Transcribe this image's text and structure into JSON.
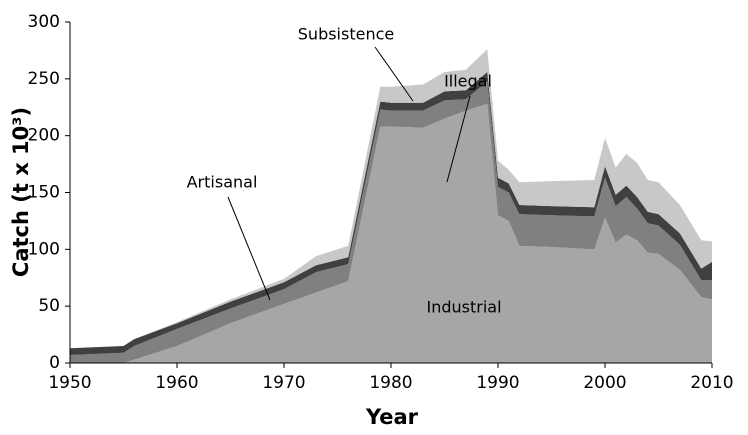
{
  "chart_data": {
    "type": "stacked_area",
    "x_label": "Year",
    "y_label": "Catch (t x 10³)",
    "x": [
      1950,
      1955,
      1956,
      1960,
      1965,
      1970,
      1973,
      1976,
      1979,
      1980,
      1983,
      1985,
      1987,
      1989,
      1990,
      1991,
      1992,
      1995,
      1999,
      2000,
      2001,
      2002,
      2003,
      2004,
      2005,
      2007,
      2009,
      2010
    ],
    "series": [
      {
        "name": "Industrial",
        "color": "#a6a6a6",
        "values": [
          0,
          0,
          3,
          15,
          35,
          52,
          62,
          72,
          208,
          208,
          207,
          215,
          222,
          228,
          130,
          125,
          103,
          102,
          100,
          128,
          106,
          113,
          108,
          97,
          96,
          82,
          58,
          56
        ]
      },
      {
        "name": "Artisanal",
        "color": "#808080",
        "values": [
          7,
          9,
          12,
          15,
          13,
          13,
          18,
          15,
          15,
          14,
          15,
          16,
          10,
          20,
          25,
          25,
          28,
          28,
          29,
          35,
          32,
          33,
          28,
          26,
          25,
          22,
          15,
          17
        ]
      },
      {
        "name": "Subsistence",
        "color": "#404040",
        "values": [
          6,
          6,
          6,
          5,
          6,
          6,
          6,
          6,
          7,
          7,
          7,
          8,
          8,
          8,
          8,
          8,
          8,
          8,
          8,
          10,
          10,
          10,
          10,
          10,
          10,
          10,
          10,
          16
        ]
      },
      {
        "name": "Illegal",
        "color": "#c8c8c8",
        "values": [
          0,
          0,
          0,
          1,
          2,
          3,
          8,
          10,
          13,
          14,
          16,
          17,
          18,
          20,
          15,
          12,
          20,
          22,
          24,
          25,
          24,
          28,
          30,
          28,
          28,
          25,
          25,
          18
        ]
      }
    ],
    "xlim": [
      1950,
      2010
    ],
    "xticks": [
      1950,
      1960,
      1970,
      1980,
      1990,
      2000,
      2010
    ],
    "ylim": [
      0,
      300
    ],
    "yticks": [
      0,
      50,
      100,
      150,
      200,
      250,
      300
    ]
  }
}
